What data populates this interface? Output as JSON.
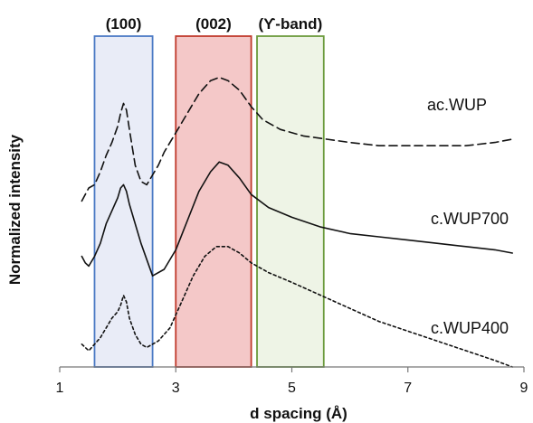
{
  "chart_data": {
    "type": "line",
    "xlabel": "d spacing (Å)",
    "ylabel": "Normalized intensity",
    "xlim": [
      1,
      9
    ],
    "xticks": [
      1,
      3,
      5,
      7,
      9
    ],
    "grid": false,
    "regions": [
      {
        "label": "(100)",
        "x_range": [
          1.6,
          2.6
        ],
        "color": "#4a79c4",
        "fill": "#e9ecf7"
      },
      {
        "label": "(002)",
        "x_range": [
          3.0,
          4.3
        ],
        "color": "#c0392b",
        "fill": "#f4c8c8"
      },
      {
        "label": "(ϒ-band)",
        "x_range": [
          4.4,
          5.55
        ],
        "color": "#6b9a3c",
        "fill": "#eef4e6"
      }
    ],
    "series": [
      {
        "name": "ac.WUP",
        "style": "dashed",
        "points": [
          [
            1.38,
            0.51
          ],
          [
            1.44,
            0.53
          ],
          [
            1.5,
            0.55
          ],
          [
            1.6,
            0.56
          ],
          [
            1.7,
            0.6
          ],
          [
            1.8,
            0.65
          ],
          [
            1.9,
            0.69
          ],
          [
            2.0,
            0.74
          ],
          [
            2.05,
            0.78
          ],
          [
            2.1,
            0.81
          ],
          [
            2.15,
            0.79
          ],
          [
            2.2,
            0.73
          ],
          [
            2.3,
            0.62
          ],
          [
            2.4,
            0.57
          ],
          [
            2.5,
            0.56
          ],
          [
            2.6,
            0.59
          ],
          [
            2.7,
            0.62
          ],
          [
            2.8,
            0.66
          ],
          [
            3.0,
            0.72
          ],
          [
            3.2,
            0.78
          ],
          [
            3.4,
            0.84
          ],
          [
            3.6,
            0.88
          ],
          [
            3.75,
            0.89
          ],
          [
            3.9,
            0.88
          ],
          [
            4.1,
            0.85
          ],
          [
            4.3,
            0.8
          ],
          [
            4.5,
            0.76
          ],
          [
            4.8,
            0.73
          ],
          [
            5.2,
            0.71
          ],
          [
            5.6,
            0.7
          ],
          [
            6.0,
            0.69
          ],
          [
            6.5,
            0.68
          ],
          [
            7.0,
            0.68
          ],
          [
            7.5,
            0.68
          ],
          [
            8.0,
            0.68
          ],
          [
            8.5,
            0.69
          ],
          [
            8.8,
            0.7
          ]
        ]
      },
      {
        "name": "c.WUP700",
        "style": "solid",
        "points": [
          [
            1.38,
            0.34
          ],
          [
            1.44,
            0.32
          ],
          [
            1.5,
            0.31
          ],
          [
            1.6,
            0.34
          ],
          [
            1.7,
            0.38
          ],
          [
            1.8,
            0.44
          ],
          [
            1.9,
            0.48
          ],
          [
            2.0,
            0.52
          ],
          [
            2.05,
            0.55
          ],
          [
            2.1,
            0.56
          ],
          [
            2.15,
            0.54
          ],
          [
            2.2,
            0.5
          ],
          [
            2.3,
            0.44
          ],
          [
            2.4,
            0.38
          ],
          [
            2.5,
            0.33
          ],
          [
            2.6,
            0.28
          ],
          [
            2.8,
            0.3
          ],
          [
            3.0,
            0.36
          ],
          [
            3.2,
            0.45
          ],
          [
            3.4,
            0.54
          ],
          [
            3.6,
            0.6
          ],
          [
            3.75,
            0.63
          ],
          [
            3.9,
            0.62
          ],
          [
            4.1,
            0.58
          ],
          [
            4.3,
            0.53
          ],
          [
            4.6,
            0.49
          ],
          [
            5.0,
            0.46
          ],
          [
            5.5,
            0.43
          ],
          [
            6.0,
            0.41
          ],
          [
            6.5,
            0.4
          ],
          [
            7.0,
            0.39
          ],
          [
            7.5,
            0.38
          ],
          [
            8.0,
            0.37
          ],
          [
            8.5,
            0.36
          ],
          [
            8.8,
            0.35
          ]
        ]
      },
      {
        "name": "c.WUP400",
        "style": "dotted",
        "points": [
          [
            1.38,
            0.07
          ],
          [
            1.44,
            0.06
          ],
          [
            1.5,
            0.05
          ],
          [
            1.6,
            0.07
          ],
          [
            1.7,
            0.09
          ],
          [
            1.8,
            0.12
          ],
          [
            1.9,
            0.15
          ],
          [
            2.0,
            0.17
          ],
          [
            2.05,
            0.19
          ],
          [
            2.1,
            0.22
          ],
          [
            2.15,
            0.2
          ],
          [
            2.2,
            0.15
          ],
          [
            2.3,
            0.1
          ],
          [
            2.4,
            0.07
          ],
          [
            2.5,
            0.06
          ],
          [
            2.7,
            0.08
          ],
          [
            2.9,
            0.12
          ],
          [
            3.1,
            0.2
          ],
          [
            3.3,
            0.28
          ],
          [
            3.5,
            0.34
          ],
          [
            3.7,
            0.37
          ],
          [
            3.8,
            0.37
          ],
          [
            3.9,
            0.37
          ],
          [
            4.1,
            0.35
          ],
          [
            4.3,
            0.32
          ],
          [
            4.6,
            0.29
          ],
          [
            5.0,
            0.26
          ],
          [
            5.5,
            0.22
          ],
          [
            6.0,
            0.18
          ],
          [
            6.5,
            0.14
          ],
          [
            7.0,
            0.11
          ],
          [
            7.5,
            0.08
          ],
          [
            8.0,
            0.05
          ],
          [
            8.5,
            0.02
          ],
          [
            8.8,
            0.0
          ]
        ]
      }
    ]
  }
}
